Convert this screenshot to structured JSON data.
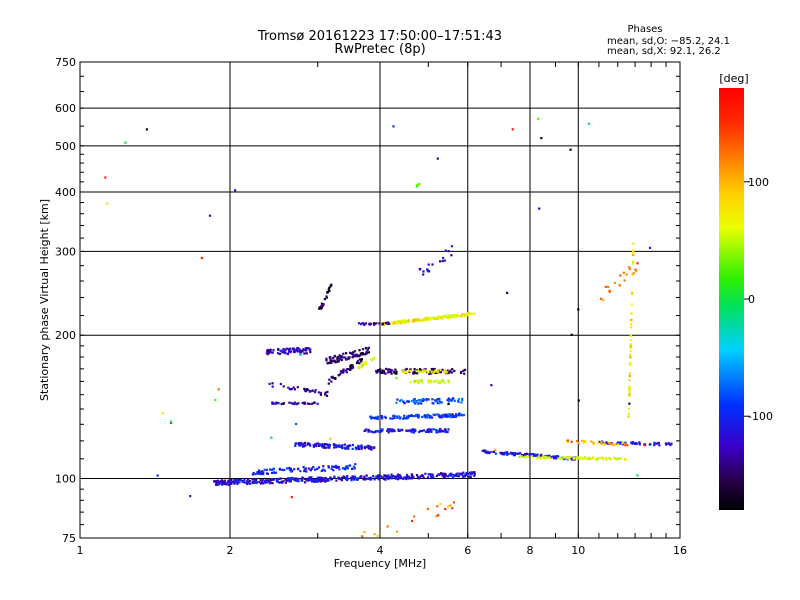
{
  "chart_data": {
    "type": "scatter",
    "title": "Tromsø 20161223 17:50:00–17:51:43",
    "subtitle": "RwPretec (8p)",
    "xlabel": "Frequency [MHz]",
    "ylabel": "Stationary phase Virtual Height [km]",
    "x_scale": "log",
    "y_scale": "log",
    "xlim": [
      1,
      16
    ],
    "ylim": [
      75,
      750
    ],
    "x_ticks": [
      1,
      2,
      4,
      6,
      8,
      10,
      16
    ],
    "x_tick_labels": [
      "1",
      "2",
      "4",
      "6",
      "8",
      "10",
      "16"
    ],
    "y_ticks": [
      75,
      100,
      200,
      300,
      400,
      500,
      600,
      750
    ],
    "y_tick_labels": [
      "75",
      "100",
      "200",
      "300",
      "400",
      "500",
      "600",
      "750"
    ],
    "grid": true,
    "phase_stats": {
      "heading": "Phases",
      "o_line": "mean, sd,O: −85.2, 24.1",
      "x_line": "mean, sd,X:  92.1, 26.2"
    },
    "colorbar": {
      "label": "[deg]",
      "range": [
        -180,
        180
      ],
      "ticks": [
        100,
        0,
        -100
      ],
      "tick_labels": [
        "100",
        "0",
        "-100"
      ],
      "colormap": "rainbow"
    },
    "traces": [
      {
        "x_start": 1.85,
        "x_end": 6.2,
        "y_start": 98,
        "y_end": 102,
        "phase": -115,
        "density": 420,
        "spread": 0.012
      },
      {
        "x_start": 2.2,
        "x_end": 3.6,
        "y_start": 103,
        "y_end": 106,
        "phase": -100,
        "density": 90,
        "spread": 0.012
      },
      {
        "x_start": 2.7,
        "x_end": 3.9,
        "y_start": 118,
        "y_end": 116,
        "phase": -110,
        "density": 110,
        "spread": 0.01
      },
      {
        "x_start": 3.7,
        "x_end": 5.5,
        "y_start": 126,
        "y_end": 126,
        "phase": -105,
        "density": 90,
        "spread": 0.008
      },
      {
        "x_start": 3.8,
        "x_end": 5.9,
        "y_start": 134,
        "y_end": 136,
        "phase": -95,
        "density": 110,
        "spread": 0.008
      },
      {
        "x_start": 4.3,
        "x_end": 5.9,
        "y_start": 145,
        "y_end": 146,
        "phase": -80,
        "density": 60,
        "spread": 0.012
      },
      {
        "x_start": 2.4,
        "x_end": 3.0,
        "y_start": 144,
        "y_end": 144,
        "phase": -130,
        "density": 30,
        "spread": 0.004
      },
      {
        "x_start": 3.9,
        "x_end": 6.0,
        "y_start": 168,
        "y_end": 168,
        "phase": -150,
        "density": 90,
        "spread": 0.012
      },
      {
        "x_start": 4.4,
        "x_end": 5.5,
        "y_start": 168,
        "y_end": 168,
        "phase": 95,
        "density": 40,
        "spread": 0.006
      },
      {
        "x_start": 4.6,
        "x_end": 5.5,
        "y_start": 160,
        "y_end": 160,
        "phase": 80,
        "density": 30,
        "spread": 0.008
      },
      {
        "x_start": 4.0,
        "x_end": 6.2,
        "y_start": 211,
        "y_end": 222,
        "phase": 95,
        "density": 170,
        "spread": 0.006
      },
      {
        "x_start": 3.6,
        "x_end": 4.2,
        "y_start": 211,
        "y_end": 212,
        "phase": -135,
        "density": 25,
        "spread": 0.005
      },
      {
        "x_start": 2.35,
        "x_end": 2.9,
        "y_start": 184,
        "y_end": 186,
        "phase": -125,
        "density": 70,
        "spread": 0.014
      },
      {
        "x_start": 3.1,
        "x_end": 3.8,
        "y_start": 176,
        "y_end": 186,
        "phase": -150,
        "density": 80,
        "spread": 0.016
      },
      {
        "x_start": 3.15,
        "x_end": 3.7,
        "y_start": 160,
        "y_end": 178,
        "phase": -150,
        "density": 40,
        "spread": 0.012
      },
      {
        "x_start": 2.4,
        "x_end": 3.2,
        "y_start": 158,
        "y_end": 150,
        "phase": -135,
        "density": 30,
        "spread": 0.01
      },
      {
        "x_start": 3.0,
        "x_end": 3.2,
        "y_start": 222,
        "y_end": 255,
        "phase": -155,
        "density": 22,
        "spread": 0.012
      },
      {
        "x_start": 3.6,
        "x_end": 3.9,
        "y_start": 170,
        "y_end": 180,
        "phase": 85,
        "density": 16,
        "spread": 0.01
      },
      {
        "x_start": 6.4,
        "x_end": 10.0,
        "y_start": 114,
        "y_end": 110,
        "phase": -110,
        "density": 110,
        "spread": 0.006
      },
      {
        "x_start": 7.6,
        "x_end": 12.5,
        "y_start": 111,
        "y_end": 110,
        "phase": 80,
        "density": 70,
        "spread": 0.005
      },
      {
        "x_start": 11.0,
        "x_end": 15.5,
        "y_start": 119,
        "y_end": 118,
        "phase": -100,
        "density": 50,
        "spread": 0.006
      },
      {
        "x_start": 9.2,
        "x_end": 12.6,
        "y_start": 120,
        "y_end": 118,
        "phase": 120,
        "density": 30,
        "spread": 0.006
      },
      {
        "x_start": 12.6,
        "x_end": 12.9,
        "y_start": 130,
        "y_end": 310,
        "phase": 100,
        "density": 45,
        "spread": 0.03
      },
      {
        "x_start": 11.0,
        "x_end": 13.2,
        "y_start": 240,
        "y_end": 280,
        "phase": 130,
        "density": 18,
        "spread": 0.03
      },
      {
        "x_start": 4.7,
        "x_end": 4.8,
        "y_start": 410,
        "y_end": 415,
        "phase": 40,
        "density": 6,
        "spread": 0.004
      },
      {
        "x_start": 4.7,
        "x_end": 5.6,
        "y_start": 265,
        "y_end": 300,
        "phase": -120,
        "density": 18,
        "spread": 0.03
      },
      {
        "x_start": 3.3,
        "x_end": 6.0,
        "y_start": 72,
        "y_end": 90,
        "phase": 130,
        "density": 26,
        "spread": 0.03
      },
      {
        "x_start": 1.1,
        "x_end": 15.0,
        "y_start": 90,
        "y_end": 600,
        "phase": -100,
        "density": 40,
        "spread": 0.0
      }
    ]
  }
}
